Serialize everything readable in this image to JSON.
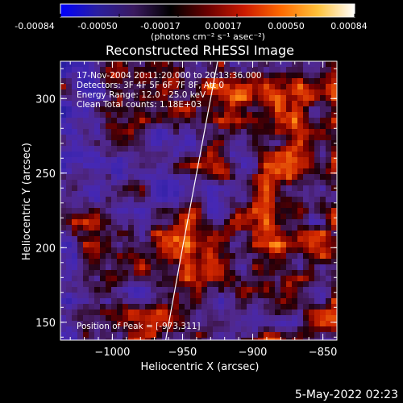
{
  "colorbar": {
    "ticks": [
      "-0.00084",
      "-0.00050",
      "-0.00017",
      "0.00017",
      "0.00050",
      "0.00084"
    ],
    "unit_label": "(photons cm⁻² s⁻¹ asec⁻²)",
    "gradient": [
      "#0000ff",
      "#2a1fa0",
      "#3a1a5f",
      "#000000",
      "#6a0000",
      "#cc1a00",
      "#ff6a00",
      "#ffc23a",
      "#ffffff"
    ]
  },
  "chart_data": {
    "type": "heatmap",
    "title": "Reconstructed RHESSI Image",
    "xlabel": "Heliocentric X (arcsec)",
    "ylabel": "Heliocentric Y (arcsec)",
    "xlim": [
      -1037,
      -840
    ],
    "ylim": [
      138,
      325
    ],
    "x_ticks": [
      -1000,
      -950,
      -900,
      -850
    ],
    "y_ticks": [
      150,
      200,
      250,
      300
    ],
    "vlim": [
      -0.00084,
      0.00084
    ],
    "peak": [
      -973,
      311
    ],
    "limb_arc": [
      [
        -962,
        138
      ],
      [
        -950,
        200
      ],
      [
        -938,
        260
      ],
      [
        -925,
        325
      ]
    ],
    "annotations": [
      "17-Nov-2004 20:11:20.000 to 20:13:36.000",
      "Detectors: 3F 4F 5F 6F 7F 8F, Att 0",
      "Energy Range: 12.0 - 25.0 keV",
      "Clean    Total counts: 1.18E+03",
      "Position of Peak = [-973,311]"
    ]
  },
  "footer": {
    "date": "5-May-2022 02:23"
  }
}
